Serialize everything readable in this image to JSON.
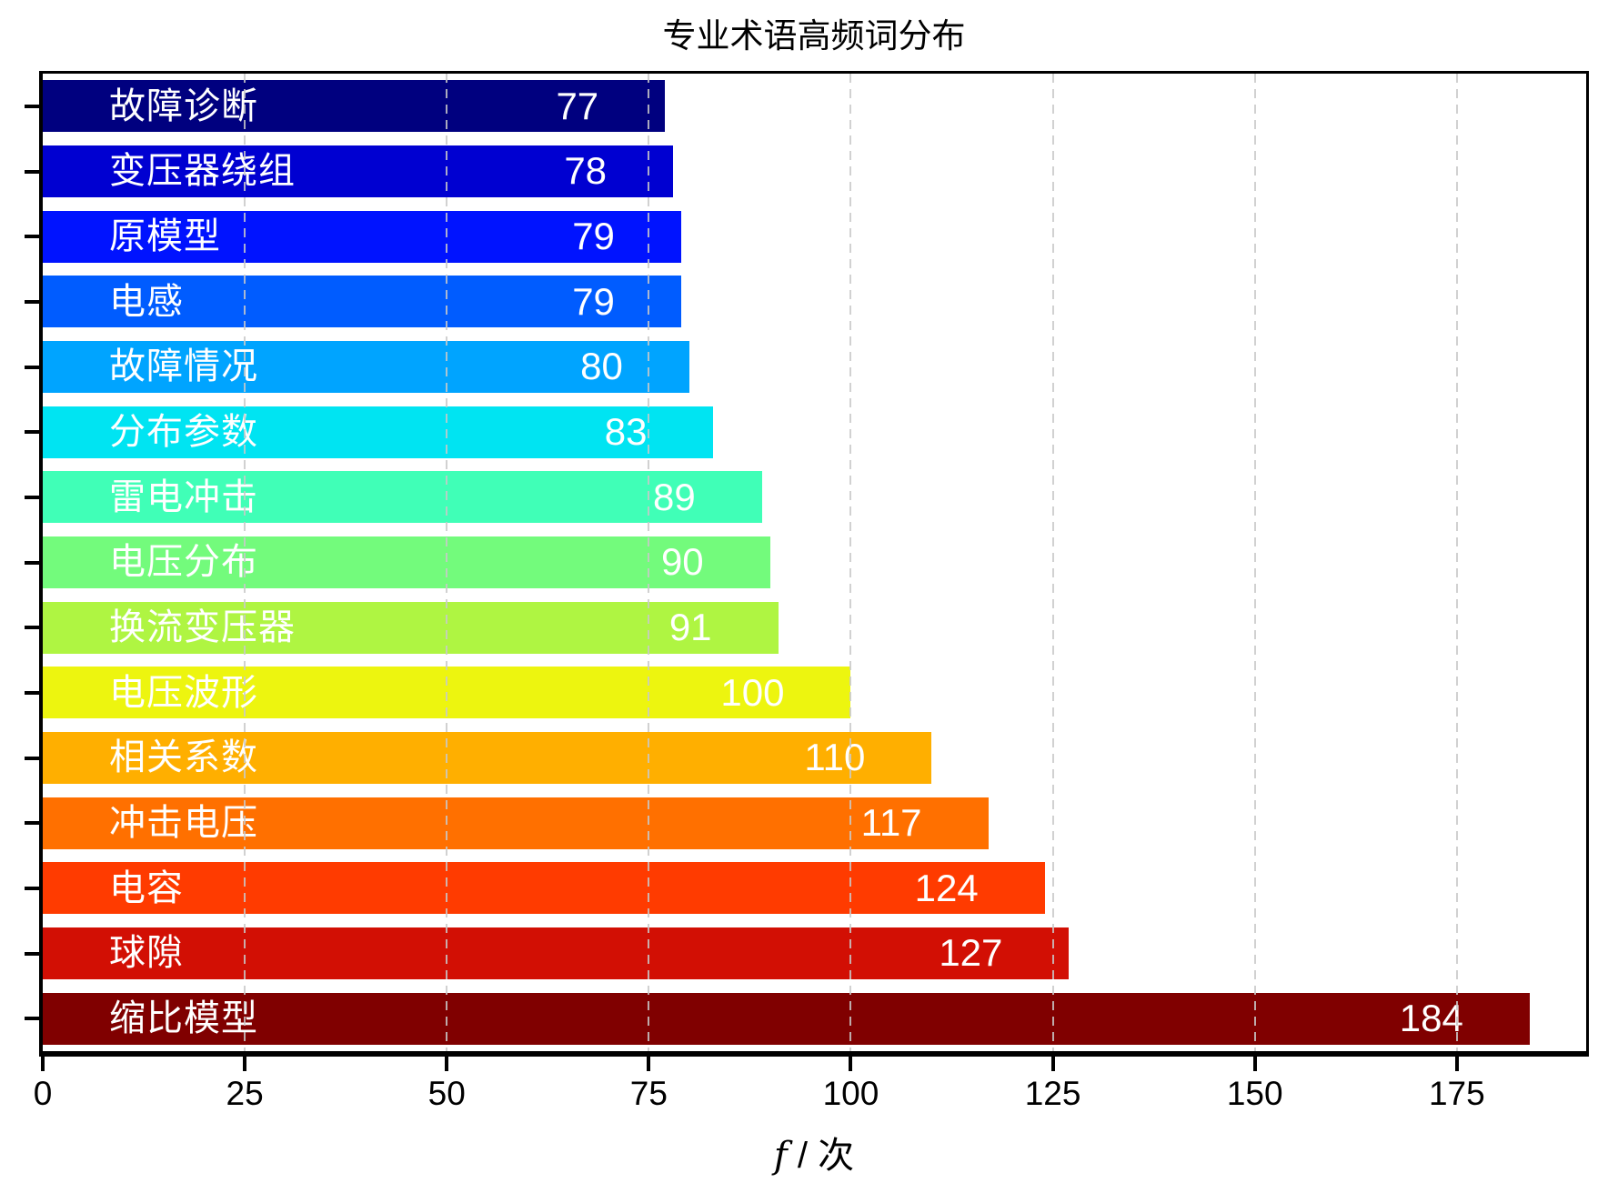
{
  "chart_data": {
    "type": "bar",
    "orientation": "horizontal",
    "title": "专业术语高频词分布",
    "xlabel": "f / 次",
    "xlabel_parts": {
      "math": "f",
      "sep": " / ",
      "unit": "次"
    },
    "categories": [
      "故障诊断",
      "变压器绕组",
      "原模型",
      "电感",
      "故障情况",
      "分布参数",
      "雷电冲击",
      "电压分布",
      "换流变压器",
      "电压波形",
      "相关系数",
      "冲击电压",
      "电容",
      "球隙",
      "缩比模型"
    ],
    "values": [
      77,
      78,
      79,
      79,
      80,
      83,
      89,
      90,
      91,
      100,
      110,
      117,
      124,
      127,
      184
    ],
    "bar_colors": [
      "#00007f",
      "#0000d1",
      "#0013ff",
      "#005cff",
      "#00a4ff",
      "#00e4f2",
      "#40ffb7",
      "#73fb7c",
      "#aff542",
      "#edf50f",
      "#ffaf00",
      "#ff7000",
      "#ff3b00",
      "#d20f04",
      "#800000"
    ],
    "value_label_color": "#ffffff",
    "category_label_color": "#ffffff",
    "xticks": [
      0,
      25,
      50,
      75,
      100,
      125,
      150,
      175
    ],
    "xlim": [
      0,
      191
    ],
    "grid": "vertical-dashed",
    "grid_color": "#c9c9c9",
    "background": "#ffffff",
    "legend": "none"
  }
}
